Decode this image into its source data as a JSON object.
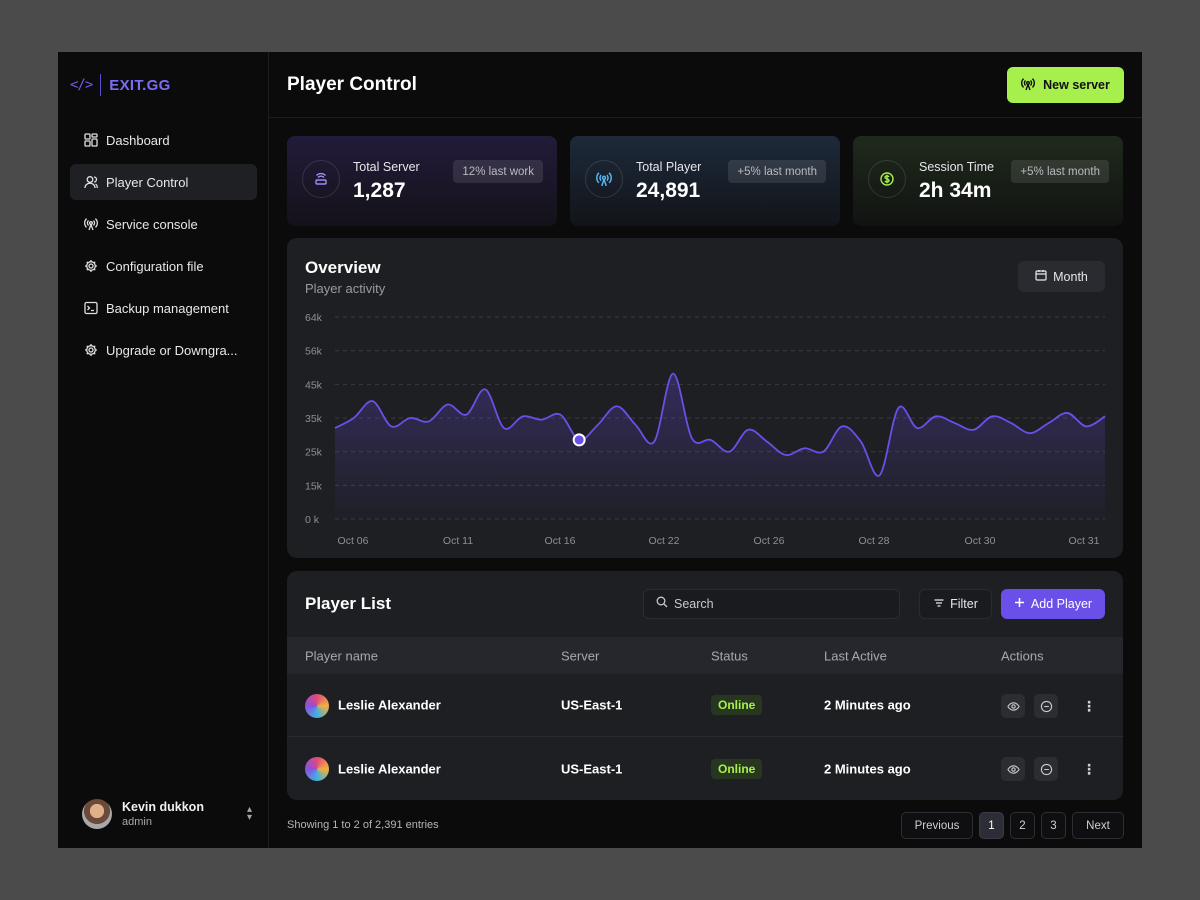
{
  "brand": {
    "code_glyph": "</>",
    "name": "EXIT.GG"
  },
  "sidebar": {
    "items": [
      {
        "label": "Dashboard",
        "icon": "grid-icon"
      },
      {
        "label": "Player Control",
        "icon": "user-icon",
        "active": true
      },
      {
        "label": "Service console",
        "icon": "antenna-icon"
      },
      {
        "label": "Configuration file",
        "icon": "gear-icon"
      },
      {
        "label": "Backup management",
        "icon": "terminal-icon"
      },
      {
        "label": "Upgrade or Downgra...",
        "icon": "gear-icon"
      }
    ],
    "user": {
      "name": "Kevin dukkon",
      "role": "admin"
    }
  },
  "header": {
    "title": "Player Control",
    "new_server_label": "New server"
  },
  "stats": [
    {
      "label": "Total Server",
      "value": "1,287",
      "badge": "12% last work",
      "icon": "router-icon"
    },
    {
      "label": "Total Player",
      "value": "24,891",
      "badge": "+5% last month",
      "icon": "antenna-icon"
    },
    {
      "label": "Session Time",
      "value": "2h 34m",
      "badge": "+5% last month",
      "icon": "dollar-icon"
    }
  ],
  "overview": {
    "title": "Overview",
    "subtitle": "Player activity",
    "range_label": "Month"
  },
  "chart_data": {
    "type": "area",
    "title": "Overview",
    "subtitle": "Player activity",
    "y_ticks": [
      "64k",
      "56k",
      "45k",
      "35k",
      "25k",
      "15k",
      "0 k"
    ],
    "x_ticks": [
      "Oct 06",
      "Oct 11",
      "Oct 16",
      "Oct 22",
      "Oct 26",
      "Oct 28",
      "Oct 30",
      "Oct 31"
    ],
    "grid": true,
    "legend": "none",
    "color": "#6a4fe8",
    "highlight_index": 13,
    "series": [
      {
        "values": [
          32,
          35,
          40,
          32.5,
          35,
          34,
          39,
          36,
          43.5,
          32,
          35.5,
          34.5,
          36,
          28.5,
          33,
          38.5,
          33,
          28,
          48.5,
          29,
          28.5,
          25,
          31.5,
          28,
          24,
          26,
          25,
          32.5,
          28,
          18,
          38,
          32,
          35.5,
          33.5,
          31.5,
          35.5,
          33.5,
          30.5,
          33.5,
          36.5,
          32.5,
          35.5
        ]
      }
    ]
  },
  "player_list": {
    "title": "Player List",
    "search_placeholder": "Search",
    "filter_label": "Filter",
    "add_label": "Add Player",
    "columns": [
      "Player name",
      "Server",
      "Status",
      "Last Active",
      "Actions"
    ],
    "rows": [
      {
        "name": "Leslie Alexander",
        "server": "US-East-1",
        "status": "Online",
        "last_active": "2 Minutes ago"
      },
      {
        "name": "Leslie Alexander",
        "server": "US-East-1",
        "status": "Online",
        "last_active": "2 Minutes ago"
      }
    ]
  },
  "footer": {
    "showing": "Showing 1 to 2 of 2,391 entries",
    "previous": "Previous",
    "pages": [
      "1",
      "2",
      "3"
    ],
    "current_page": "1",
    "next": "Next"
  }
}
